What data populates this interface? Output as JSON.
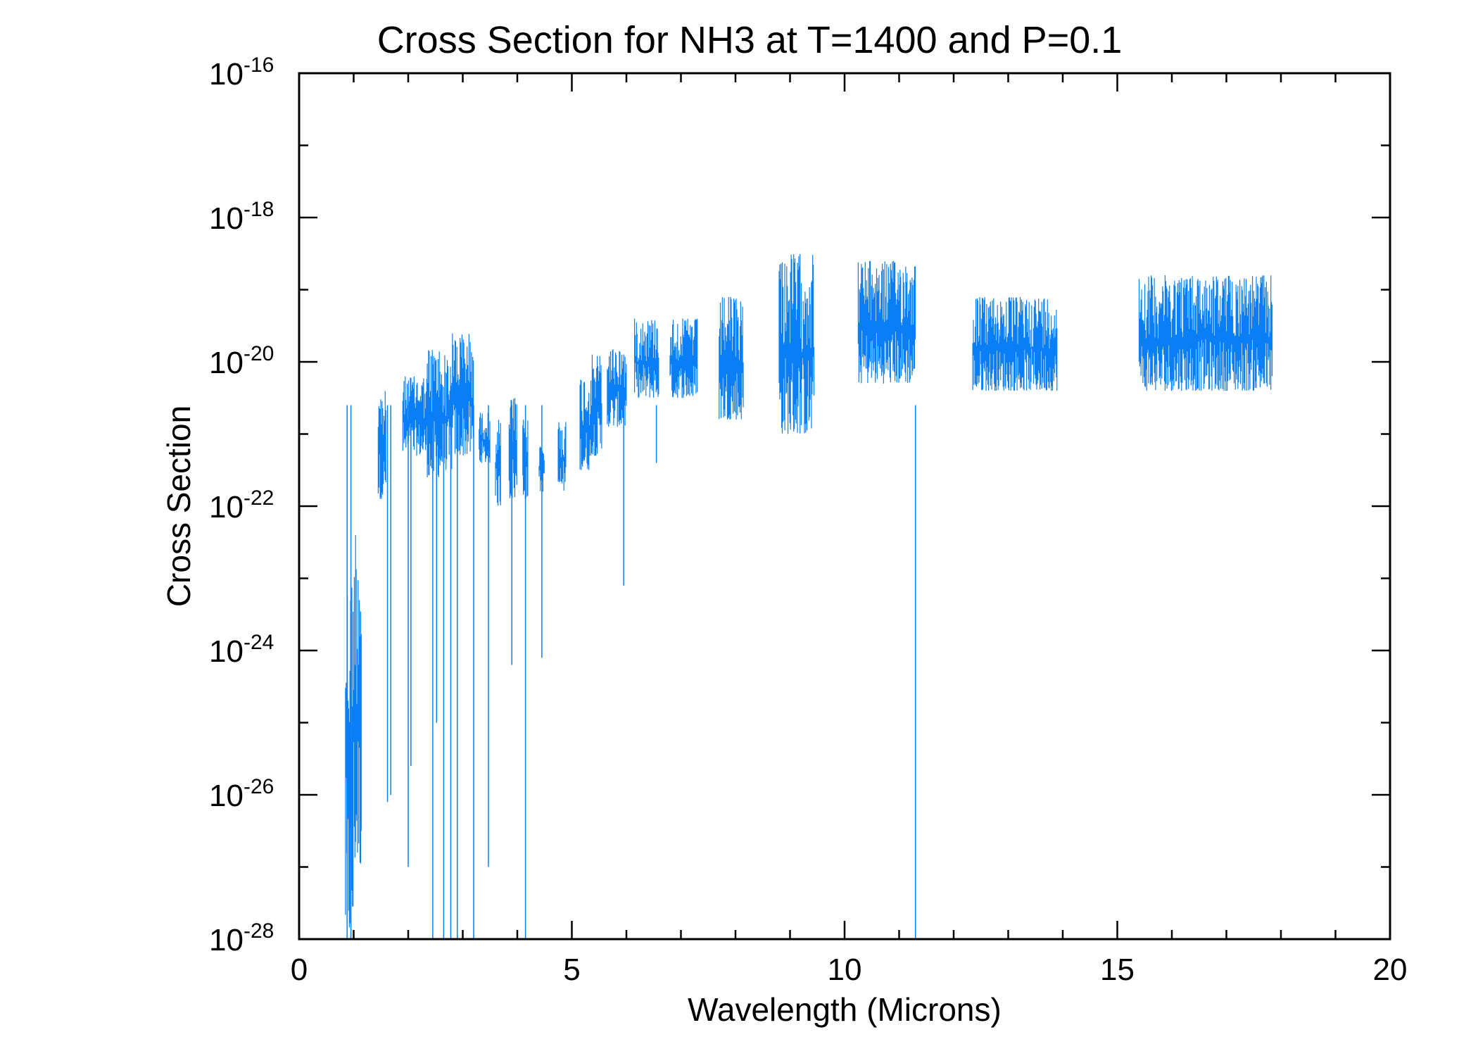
{
  "chart_data": {
    "type": "line",
    "title": "Cross Section for NH3 at T=1400 and P=0.1",
    "xlabel": "Wavelength (Microns)",
    "ylabel": "Cross Section",
    "xlim": [
      0,
      20
    ],
    "ylim_log10": [
      -28,
      -16
    ],
    "yscale": "log",
    "x_ticks": [
      {
        "value": 0,
        "label": "0"
      },
      {
        "value": 5,
        "label": "5"
      },
      {
        "value": 10,
        "label": "10"
      },
      {
        "value": 15,
        "label": "15"
      },
      {
        "value": 20,
        "label": "20"
      }
    ],
    "y_ticks": [
      {
        "exp": -28,
        "base": "10",
        "exp_label": "-28"
      },
      {
        "exp": -26,
        "base": "10",
        "exp_label": "-26"
      },
      {
        "exp": -24,
        "base": "10",
        "exp_label": "-24"
      },
      {
        "exp": -22,
        "base": "10",
        "exp_label": "-22"
      },
      {
        "exp": -20,
        "base": "10",
        "exp_label": "-20"
      },
      {
        "exp": -18,
        "base": "10",
        "exp_label": "-18"
      },
      {
        "exp": -16,
        "base": "10",
        "exp_label": "-16"
      }
    ],
    "line_color": "#0a7ff5",
    "series": [
      {
        "name": "NH3 cross section",
        "bands": [
          {
            "x0": 0.85,
            "x1": 1.0,
            "ylo": -28.0,
            "yhi": -23.0
          },
          {
            "x0": 1.0,
            "x1": 1.15,
            "ylo": -27.0,
            "yhi": -22.2
          },
          {
            "x0": 1.45,
            "x1": 1.6,
            "ylo": -21.9,
            "yhi": -20.4
          },
          {
            "x0": 1.9,
            "x1": 2.35,
            "ylo": -21.3,
            "yhi": -20.2
          },
          {
            "x0": 2.35,
            "x1": 2.6,
            "ylo": -21.6,
            "yhi": -19.8
          },
          {
            "x0": 2.6,
            "x1": 2.8,
            "ylo": -21.5,
            "yhi": -19.9
          },
          {
            "x0": 2.8,
            "x1": 3.2,
            "ylo": -21.3,
            "yhi": -19.6
          },
          {
            "x0": 3.3,
            "x1": 3.5,
            "ylo": -21.4,
            "yhi": -20.7
          },
          {
            "x0": 3.6,
            "x1": 3.7,
            "ylo": -22.0,
            "yhi": -20.8
          },
          {
            "x0": 3.85,
            "x1": 4.0,
            "ylo": -21.9,
            "yhi": -20.5
          },
          {
            "x0": 4.1,
            "x1": 4.2,
            "ylo": -21.9,
            "yhi": -20.8
          },
          {
            "x0": 4.4,
            "x1": 4.5,
            "ylo": -21.8,
            "yhi": -21.1
          },
          {
            "x0": 4.75,
            "x1": 4.9,
            "ylo": -21.8,
            "yhi": -20.8
          },
          {
            "x0": 5.15,
            "x1": 5.35,
            "ylo": -21.5,
            "yhi": -20.2
          },
          {
            "x0": 5.35,
            "x1": 5.55,
            "ylo": -21.3,
            "yhi": -19.9
          },
          {
            "x0": 5.65,
            "x1": 6.0,
            "ylo": -20.9,
            "yhi": -19.8
          },
          {
            "x0": 6.15,
            "x1": 6.6,
            "ylo": -20.5,
            "yhi": -19.4
          },
          {
            "x0": 6.8,
            "x1": 7.3,
            "ylo": -20.5,
            "yhi": -19.4
          },
          {
            "x0": 7.7,
            "x1": 8.15,
            "ylo": -20.8,
            "yhi": -19.1
          },
          {
            "x0": 8.8,
            "x1": 9.45,
            "ylo": -21.0,
            "yhi": -18.5
          },
          {
            "x0": 10.25,
            "x1": 11.3,
            "ylo": -20.3,
            "yhi": -18.6
          },
          {
            "x0": 12.35,
            "x1": 13.9,
            "ylo": -20.4,
            "yhi": -19.1
          },
          {
            "x0": 15.4,
            "x1": 17.85,
            "ylo": -20.4,
            "yhi": -18.8
          }
        ],
        "spikes": [
          {
            "x": 0.88,
            "y": -28.0
          },
          {
            "x": 0.95,
            "y": -28.0
          },
          {
            "x": 1.62,
            "y": -26.1
          },
          {
            "x": 1.68,
            "y": -26.0
          },
          {
            "x": 2.0,
            "y": -27.0
          },
          {
            "x": 2.05,
            "y": -25.6
          },
          {
            "x": 2.45,
            "y": -28.0
          },
          {
            "x": 2.52,
            "y": -25.0
          },
          {
            "x": 2.65,
            "y": -28.0
          },
          {
            "x": 2.78,
            "y": -28.0
          },
          {
            "x": 2.9,
            "y": -28.0
          },
          {
            "x": 3.2,
            "y": -28.0
          },
          {
            "x": 3.47,
            "y": -27.0
          },
          {
            "x": 3.9,
            "y": -24.2
          },
          {
            "x": 4.15,
            "y": -28.0
          },
          {
            "x": 4.45,
            "y": -24.1
          },
          {
            "x": 5.95,
            "y": -23.1
          },
          {
            "x": 6.55,
            "y": -21.4
          },
          {
            "x": 11.3,
            "y": -28.0
          }
        ]
      }
    ]
  }
}
